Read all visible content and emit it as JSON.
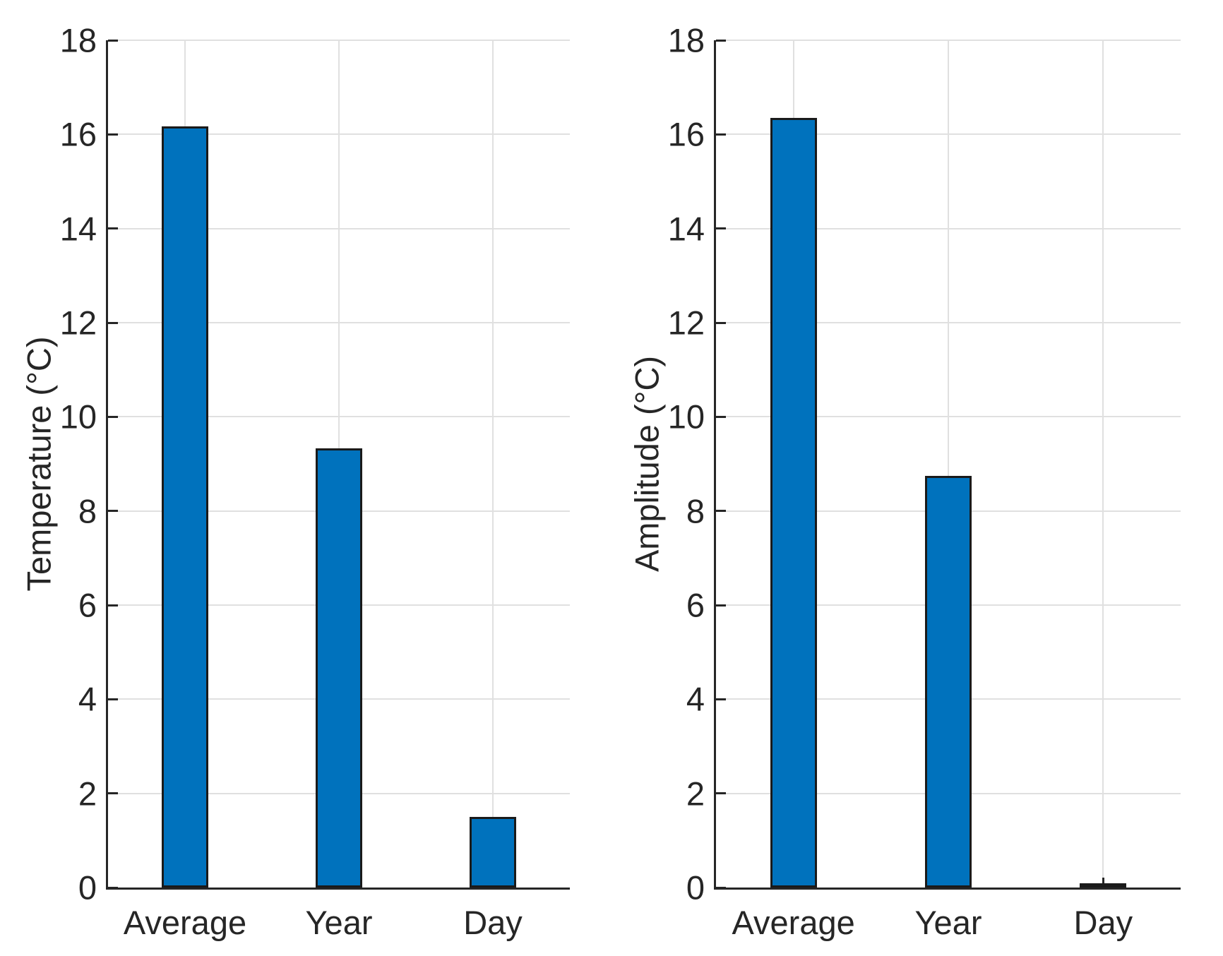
{
  "figure": {
    "background": "#ffffff",
    "text_color": "#262626",
    "axis_color": "#262626",
    "grid_color": "#e0e0e0"
  },
  "chart_data": [
    {
      "type": "bar",
      "title": "",
      "xlabel": "",
      "ylabel": "Temperature (°C)",
      "categories": [
        "Average",
        "Year",
        "Day"
      ],
      "values": [
        16.17,
        9.33,
        1.5
      ],
      "ylim": [
        0,
        18
      ],
      "yticks": [
        0,
        2,
        4,
        6,
        8,
        10,
        12,
        14,
        16,
        18
      ],
      "grid": true,
      "legend": null,
      "bar_color": "#0072BD",
      "bar_edge_color": "#1a1a1a"
    },
    {
      "type": "bar",
      "title": "",
      "xlabel": "",
      "ylabel": "Amplitude (°C)",
      "categories": [
        "Average",
        "Year",
        "Day"
      ],
      "values": [
        16.35,
        8.74,
        0.07
      ],
      "ylim": [
        0,
        18
      ],
      "yticks": [
        0,
        2,
        4,
        6,
        8,
        10,
        12,
        14,
        16,
        18
      ],
      "grid": true,
      "legend": null,
      "bar_color": "#0072BD",
      "bar_edge_color": "#1a1a1a"
    }
  ]
}
